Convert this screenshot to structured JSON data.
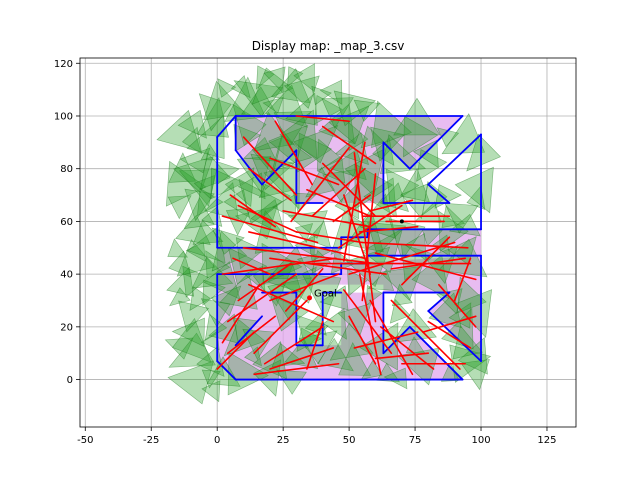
{
  "chart_data": {
    "type": "map",
    "title": "Display map: _map_3.csv",
    "xlabel": "",
    "ylabel": "",
    "xlim": [
      -52,
      136
    ],
    "ylim": [
      -18,
      122
    ],
    "xticks": [
      -50,
      -25,
      0,
      25,
      50,
      75,
      100,
      125
    ],
    "yticks": [
      0,
      20,
      40,
      60,
      80,
      100,
      120
    ],
    "grid": true,
    "annotations": [
      {
        "text": "Goal",
        "x": 41,
        "y": 33
      }
    ],
    "colors": {
      "walls": "#0000ff",
      "path": "#ff0000",
      "triangles_fill": "#2ca02c",
      "triangles_stroke": "#1a7a1a",
      "free_region": "#e0a6ec",
      "start_marker": "#ff0000"
    },
    "series": [
      {
        "kind": "walls",
        "polygons": [
          [
            [
              0,
              92
            ],
            [
              7,
              100
            ],
            [
              7,
              87
            ],
            [
              17,
              74
            ],
            [
              30,
              87
            ],
            [
              30,
              67
            ],
            [
              50,
              67
            ],
            [
              50,
              100
            ],
            [
              93,
              100
            ],
            [
              93,
              100
            ],
            [
              93,
              100
            ]
          ],
          [
            [
              7,
              100
            ],
            [
              93,
              100
            ],
            [
              73,
              80
            ],
            [
              63,
              90
            ],
            [
              63,
              67
            ],
            [
              88,
              67
            ],
            [
              80,
              74
            ],
            [
              100,
              93
            ],
            [
              100,
              57
            ],
            [
              57,
              57
            ],
            [
              57,
              54
            ],
            [
              47,
              54
            ],
            [
              47,
              49
            ],
            [
              0,
              50
            ]
          ],
          [
            [
              0,
              7
            ],
            [
              7,
              0
            ],
            [
              93,
              0
            ],
            [
              73,
              20
            ],
            [
              63,
              10
            ],
            [
              63,
              33
            ],
            [
              88,
              33
            ],
            [
              80,
              26
            ],
            [
              100,
              7
            ],
            [
              100,
              47
            ],
            [
              47,
              44
            ],
            [
              47,
              40
            ],
            [
              0,
              40
            ]
          ],
          [
            [
              17,
              33
            ],
            [
              30,
              33
            ],
            [
              30,
              13
            ],
            [
              40,
              13
            ],
            [
              40,
              33
            ],
            [
              47,
              33
            ],
            [
              47,
              36
            ],
            [
              17,
              36
            ]
          ]
        ]
      },
      {
        "kind": "path",
        "segments": [
          [
            [
              8,
              66
            ],
            [
              30,
              56
            ]
          ],
          [
            [
              30,
              56
            ],
            [
              55,
              52
            ]
          ],
          [
            [
              55,
              52
            ],
            [
              95,
              50
            ]
          ],
          [
            [
              2,
              62
            ],
            [
              38,
              52
            ]
          ],
          [
            [
              12,
              56
            ],
            [
              56,
              46
            ]
          ],
          [
            [
              25,
              64
            ],
            [
              58,
              58
            ]
          ],
          [
            [
              55,
              62
            ],
            [
              88,
              62
            ]
          ],
          [
            [
              48,
              70
            ],
            [
              58,
              40
            ]
          ],
          [
            [
              60,
              78
            ],
            [
              55,
              30
            ]
          ],
          [
            [
              52,
              86
            ],
            [
              60,
              22
            ]
          ],
          [
            [
              56,
              90
            ],
            [
              48,
              45
            ]
          ],
          [
            [
              22,
              98
            ],
            [
              36,
              74
            ]
          ],
          [
            [
              10,
              92
            ],
            [
              30,
              70
            ]
          ],
          [
            [
              20,
              84
            ],
            [
              46,
              74
            ]
          ],
          [
            [
              40,
              96
            ],
            [
              60,
              82
            ]
          ],
          [
            [
              30,
              100
            ],
            [
              50,
              98
            ]
          ],
          [
            [
              12,
              80
            ],
            [
              28,
              68
            ]
          ],
          [
            [
              5,
              70
            ],
            [
              22,
              58
            ]
          ],
          [
            [
              34,
              72
            ],
            [
              58,
              62
            ]
          ],
          [
            [
              40,
              82
            ],
            [
              60,
              62
            ]
          ],
          [
            [
              20,
              46
            ],
            [
              64,
              40
            ]
          ],
          [
            [
              2,
              40
            ],
            [
              45,
              46
            ]
          ],
          [
            [
              10,
              50
            ],
            [
              60,
              44
            ]
          ],
          [
            [
              36,
              44
            ],
            [
              96,
              44
            ]
          ],
          [
            [
              50,
              40
            ],
            [
              90,
              52
            ]
          ],
          [
            [
              60,
              48
            ],
            [
              98,
              38
            ]
          ],
          [
            [
              66,
              42
            ],
            [
              94,
              46
            ]
          ],
          [
            [
              70,
              36
            ],
            [
              88,
              54
            ]
          ],
          [
            [
              8,
              30
            ],
            [
              28,
              44
            ]
          ],
          [
            [
              4,
              22
            ],
            [
              30,
              40
            ]
          ],
          [
            [
              12,
              36
            ],
            [
              44,
              22
            ]
          ],
          [
            [
              20,
              30
            ],
            [
              46,
              40
            ]
          ],
          [
            [
              26,
              26
            ],
            [
              40,
              42
            ]
          ],
          [
            [
              14,
              10
            ],
            [
              34,
              30
            ]
          ],
          [
            [
              18,
              6
            ],
            [
              40,
              20
            ]
          ],
          [
            [
              14,
              2
            ],
            [
              46,
              6
            ]
          ],
          [
            [
              20,
              4
            ],
            [
              44,
              12
            ]
          ],
          [
            [
              34,
              4
            ],
            [
              40,
              22
            ]
          ],
          [
            [
              50,
              24
            ],
            [
              60,
              6
            ]
          ],
          [
            [
              48,
              34
            ],
            [
              66,
              10
            ]
          ],
          [
            [
              54,
              40
            ],
            [
              62,
              2
            ]
          ],
          [
            [
              58,
              30
            ],
            [
              74,
              2
            ]
          ],
          [
            [
              62,
              20
            ],
            [
              82,
              4
            ]
          ],
          [
            [
              66,
              30
            ],
            [
              92,
              4
            ]
          ],
          [
            [
              80,
              22
            ],
            [
              96,
              12
            ]
          ],
          [
            [
              84,
              36
            ],
            [
              98,
              20
            ]
          ],
          [
            [
              90,
              30
            ],
            [
              96,
              46
            ]
          ],
          [
            [
              78,
              18
            ],
            [
              98,
              24
            ]
          ],
          [
            [
              2,
              14
            ],
            [
              16,
              36
            ]
          ],
          [
            [
              0,
              4
            ],
            [
              14,
              18
            ]
          ],
          [
            [
              6,
              46
            ],
            [
              20,
              40
            ]
          ],
          [
            [
              4,
              10
            ],
            [
              22,
              24
            ]
          ],
          [
            [
              44,
              60
            ],
            [
              58,
              70
            ]
          ],
          [
            [
              36,
              62
            ],
            [
              56,
              80
            ]
          ],
          [
            [
              28,
              60
            ],
            [
              50,
              88
            ]
          ],
          [
            [
              46,
              50
            ],
            [
              70,
              66
            ]
          ],
          [
            [
              54,
              56
            ],
            [
              76,
              58
            ]
          ],
          [
            [
              64,
              60
            ],
            [
              86,
              60
            ]
          ],
          [
            [
              58,
              64
            ],
            [
              74,
              68
            ]
          ],
          [
            [
              60,
              8
            ],
            [
              80,
              10
            ]
          ],
          [
            [
              70,
              6
            ],
            [
              94,
              6
            ]
          ],
          [
            [
              52,
              12
            ],
            [
              76,
              18
            ]
          ]
        ]
      }
    ]
  }
}
